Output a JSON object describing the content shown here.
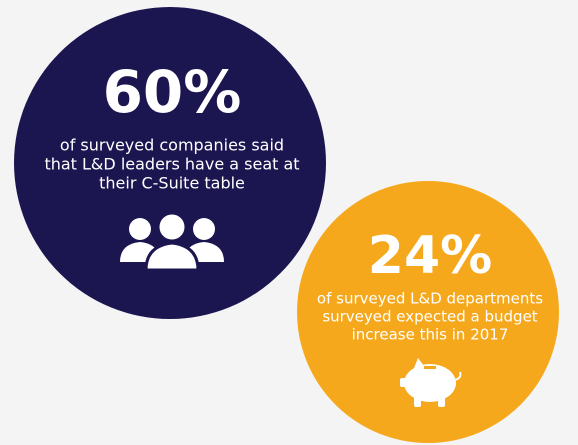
{
  "stats": [
    {
      "figure": "60%",
      "lines": [
        "of surveyed companies said",
        "that L&D leaders have a seat at",
        "their C-Suite table"
      ]
    },
    {
      "figure": "24%",
      "lines": [
        "of surveyed L&D departments",
        "surveyed expected a budget",
        "increase this in 2017"
      ]
    }
  ]
}
